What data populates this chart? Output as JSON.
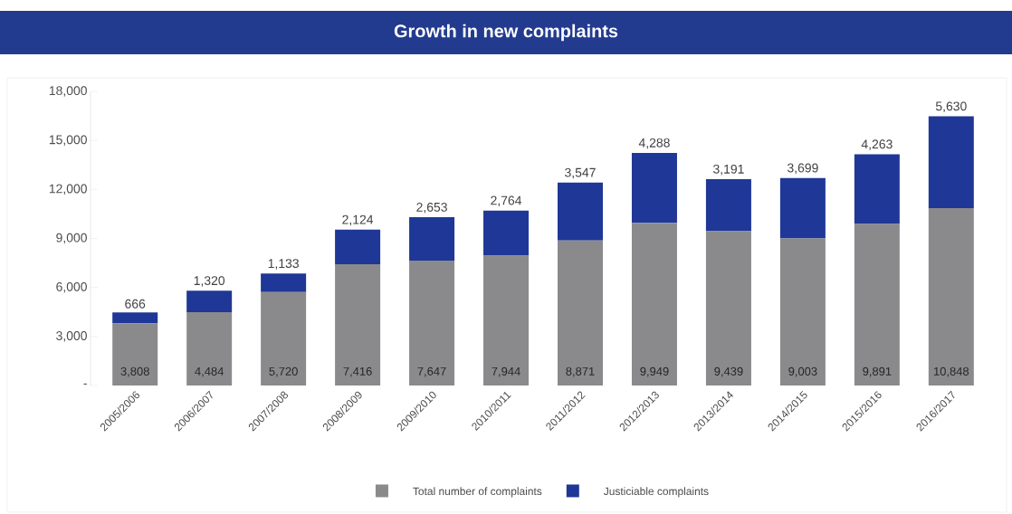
{
  "chart_data": {
    "type": "bar",
    "title": "Growth in new complaints",
    "stacked": true,
    "categories": [
      "2005/2006",
      "2006/2007",
      "2007/2008",
      "2008/2009",
      "2009/2010",
      "2010/2011",
      "2011/2012",
      "2012/2013",
      "2013/2014",
      "2014/2015",
      "2015/2016",
      "2016/2017"
    ],
    "series": [
      {
        "name": "Total number of complaints",
        "color": "#8a8a8c",
        "values": [
          3808,
          4484,
          5720,
          7416,
          7647,
          7944,
          8871,
          9949,
          9439,
          9003,
          9891,
          10848
        ],
        "value_labels": [
          "3,808",
          "4,484",
          "5,720",
          "7,416",
          "7,647",
          "7,944",
          "8,871",
          "9,949",
          "9,439",
          "9,003",
          "9,891",
          "10,848"
        ]
      },
      {
        "name": "Justiciable complaints",
        "color": "#1f3796",
        "values": [
          666,
          1320,
          1133,
          2124,
          2653,
          2764,
          3547,
          4288,
          3191,
          3699,
          4263,
          5630
        ],
        "value_labels": [
          "666",
          "1,320",
          "1,133",
          "2,124",
          "2,653",
          "2,764",
          "3,547",
          "4,288",
          "3,191",
          "3,699",
          "4,263",
          "5,630"
        ]
      }
    ],
    "ylim": [
      0,
      18000
    ],
    "yticks": [
      {
        "value": 0,
        "label": "-"
      },
      {
        "value": 3000,
        "label": "3,000"
      },
      {
        "value": 6000,
        "label": "6,000"
      },
      {
        "value": 9000,
        "label": "9,000"
      },
      {
        "value": 12000,
        "label": "12,000"
      },
      {
        "value": 15000,
        "label": "15,000"
      },
      {
        "value": 18000,
        "label": "18,000"
      }
    ],
    "legend": "bottom",
    "grid": false
  }
}
